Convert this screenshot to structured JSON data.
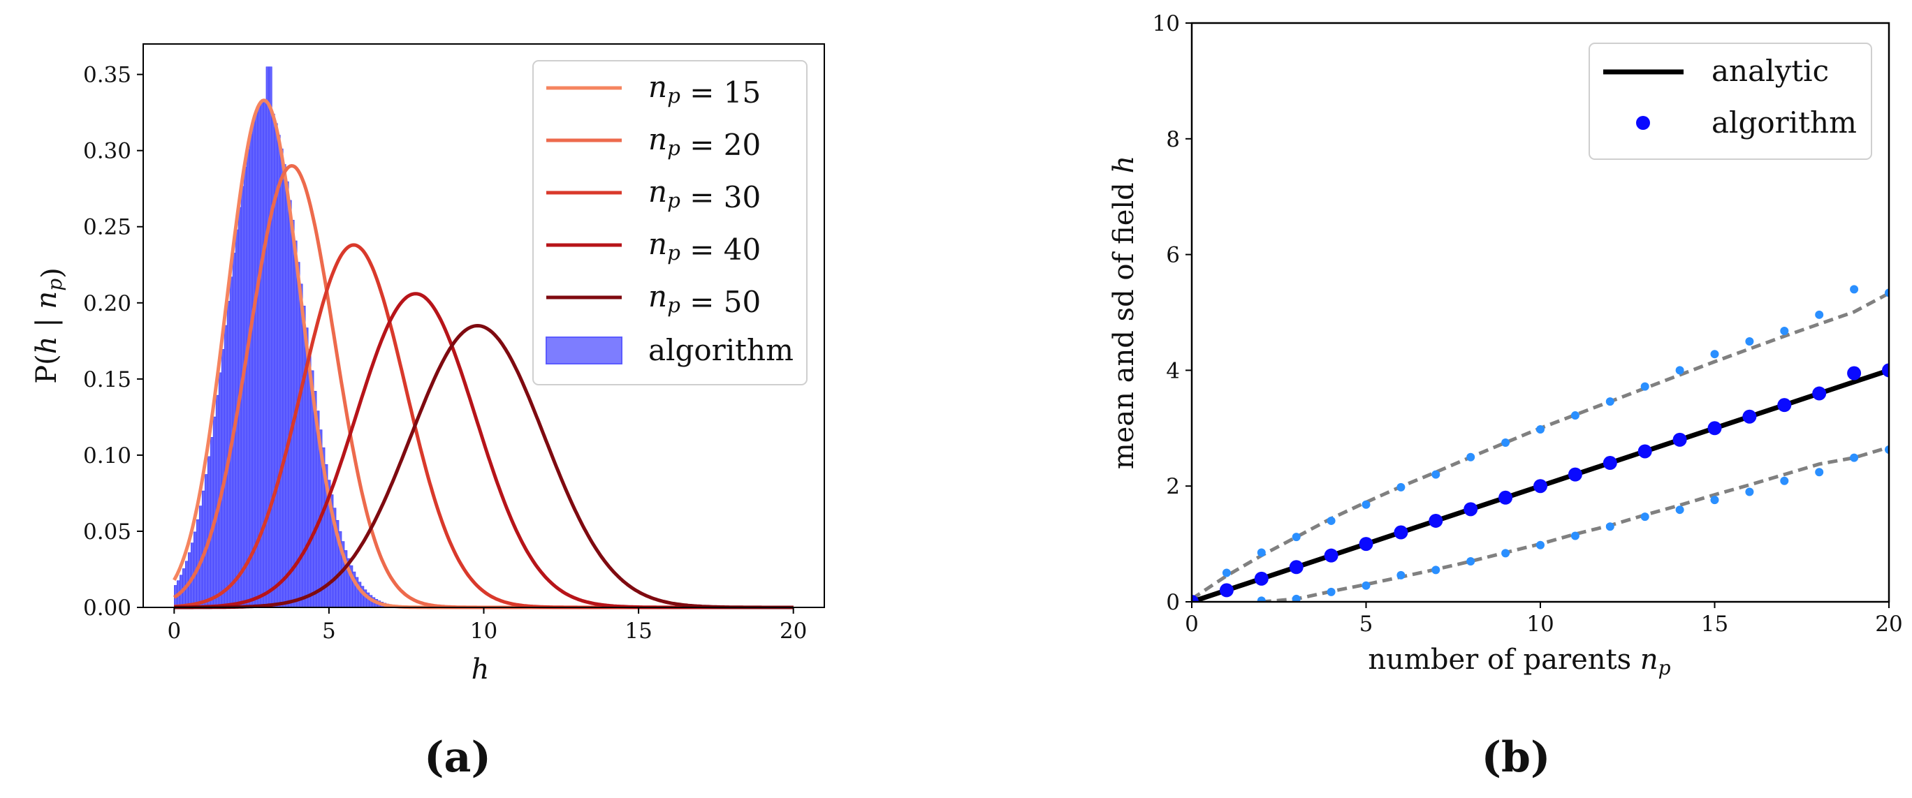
{
  "panels": [
    {
      "label": "(a)"
    },
    {
      "label": "(b)"
    }
  ],
  "chart_data": [
    {
      "type": "line",
      "xlabel": "h",
      "ylabel": "P(h | n_p)",
      "xlim": [
        -1,
        21
      ],
      "ylim": [
        0,
        0.37
      ],
      "xticks": [
        "0",
        "5",
        "10",
        "15",
        "20"
      ],
      "yticks": [
        "0.00",
        "0.05",
        "0.10",
        "0.15",
        "0.20",
        "0.25",
        "0.30",
        "0.35"
      ],
      "grid": false,
      "legend_position": "top-right",
      "series": [
        {
          "name": "n_p = 15",
          "color": "#f5845f",
          "peak_x": 2.9,
          "peak_y": 0.333,
          "sd": 1.2
        },
        {
          "name": "n_p = 20",
          "color": "#ed6a4c",
          "peak_x": 3.8,
          "peak_y": 0.29,
          "sd": 1.38
        },
        {
          "name": "n_p = 30",
          "color": "#d9392b",
          "peak_x": 5.8,
          "peak_y": 0.238,
          "sd": 1.68
        },
        {
          "name": "n_p = 40",
          "color": "#b71419",
          "peak_x": 7.8,
          "peak_y": 0.206,
          "sd": 1.94
        },
        {
          "name": "n_p = 50",
          "color": "#7f0a10",
          "peak_x": 9.8,
          "peak_y": 0.185,
          "sd": 2.16
        }
      ],
      "histogram": {
        "name": "algorithm",
        "color": "#5b5bff",
        "approx_shape": "matches n_p = 15 curve",
        "peak_x": 3.05,
        "peak_y": 0.355
      }
    },
    {
      "type": "scatter",
      "xlabel": "number of parents n_p",
      "ylabel": "mean and sd of field h",
      "xlim": [
        0,
        20
      ],
      "ylim": [
        0,
        10
      ],
      "xticks": [
        "0",
        "5",
        "10",
        "15",
        "20"
      ],
      "yticks": [
        "0",
        "2",
        "4",
        "6",
        "8",
        "10"
      ],
      "grid": false,
      "legend_position": "top-right",
      "series": [
        {
          "name": "analytic",
          "color": "#000000",
          "style": "solid line",
          "x": [
            0,
            20
          ],
          "y": [
            0,
            4.0
          ]
        },
        {
          "name": "algorithm",
          "color": "#0a0aff",
          "style": "points",
          "x": [
            0,
            1,
            2,
            3,
            4,
            5,
            6,
            7,
            8,
            9,
            10,
            11,
            12,
            13,
            14,
            15,
            16,
            17,
            18,
            19,
            20
          ],
          "y": [
            0,
            0.2,
            0.4,
            0.6,
            0.8,
            1.0,
            1.2,
            1.4,
            1.6,
            1.8,
            2.0,
            2.2,
            2.4,
            2.6,
            2.8,
            3.0,
            3.2,
            3.4,
            3.6,
            3.95,
            4.0
          ]
        },
        {
          "color": "#808080",
          "style": "dashed line",
          "x": [
            0,
            1,
            2,
            3,
            4,
            5,
            6,
            7,
            8,
            9,
            10,
            11,
            12,
            13,
            14,
            15,
            16,
            17,
            18,
            19,
            20
          ],
          "y": [
            0.05,
            0.45,
            0.8,
            1.12,
            1.44,
            1.72,
            1.99,
            2.24,
            2.5,
            2.75,
            3.0,
            3.23,
            3.46,
            3.69,
            3.92,
            4.15,
            4.37,
            4.59,
            4.8,
            5.01,
            5.33
          ]
        },
        {
          "color": "#808080",
          "style": "dashed line",
          "x": [
            2,
            3,
            4,
            5,
            6,
            7,
            8,
            9,
            10,
            11,
            12,
            13,
            14,
            15,
            16,
            17,
            18,
            19,
            20
          ],
          "y": [
            0,
            0.05,
            0.18,
            0.3,
            0.43,
            0.56,
            0.7,
            0.85,
            1.0,
            1.17,
            1.32,
            1.5,
            1.67,
            1.85,
            2.02,
            2.2,
            2.38,
            2.49,
            2.67
          ]
        },
        {
          "color": "#2a8fff",
          "style": "small points",
          "x": [
            1,
            2,
            3,
            4,
            5,
            6,
            7,
            8,
            9,
            10,
            11,
            12,
            13,
            14,
            15,
            16,
            17,
            18,
            19,
            20
          ],
          "y": [
            0.5,
            0.85,
            1.12,
            1.4,
            1.68,
            1.98,
            2.2,
            2.5,
            2.75,
            2.98,
            3.22,
            3.46,
            3.72,
            4.0,
            4.28,
            4.5,
            4.68,
            4.96,
            5.4,
            5.34
          ]
        },
        {
          "color": "#2a8fff",
          "style": "small points",
          "x": [
            2,
            3,
            4,
            5,
            6,
            7,
            8,
            9,
            10,
            11,
            12,
            13,
            14,
            15,
            16,
            17,
            18,
            19,
            20
          ],
          "y": [
            0.02,
            0.05,
            0.17,
            0.28,
            0.46,
            0.55,
            0.7,
            0.84,
            0.98,
            1.14,
            1.3,
            1.47,
            1.59,
            1.76,
            1.9,
            2.09,
            2.24,
            2.49,
            2.63
          ]
        }
      ]
    }
  ]
}
